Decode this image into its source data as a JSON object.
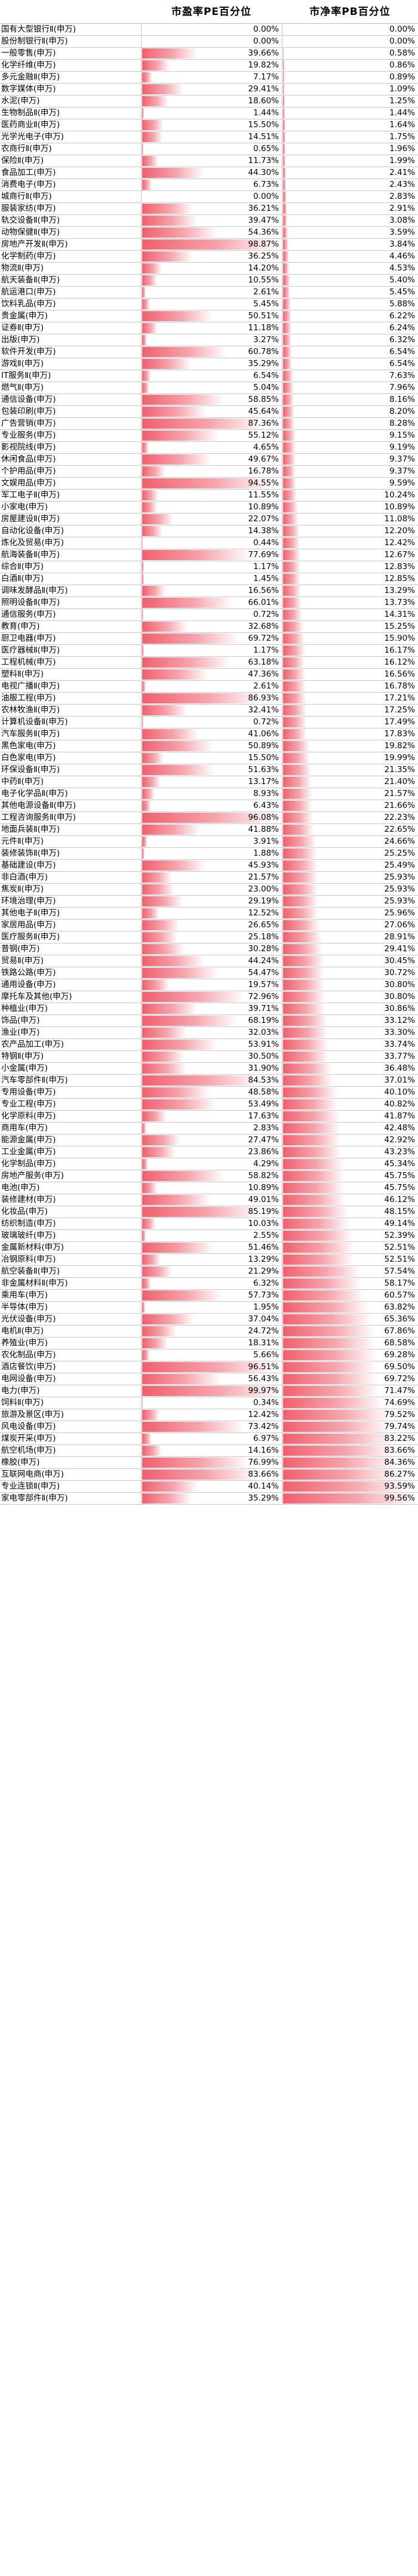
{
  "chart_data": {
    "type": "table",
    "title": "",
    "columns": [
      "",
      "市盈率PE百分位",
      "市净率PB百分位"
    ],
    "bar_color": "#f0606e",
    "rows": [
      [
        "国有大型银行Ⅱ(申万)",
        "0.00%",
        "0.00%"
      ],
      [
        "股份制银行Ⅱ(申万)",
        "0.00%",
        "0.00%"
      ],
      [
        "一般零售(申万)",
        "39.66%",
        "0.58%"
      ],
      [
        "化学纤维(申万)",
        "19.82%",
        "0.86%"
      ],
      [
        "多元金融Ⅱ(申万)",
        "7.17%",
        "0.89%"
      ],
      [
        "数字媒体(申万)",
        "29.41%",
        "1.09%"
      ],
      [
        "水泥(申万)",
        "18.60%",
        "1.25%"
      ],
      [
        "生物制品Ⅱ(申万)",
        "1.44%",
        "1.44%"
      ],
      [
        "医药商业Ⅱ(申万)",
        "15.50%",
        "1.64%"
      ],
      [
        "光学光电子(申万)",
        "14.51%",
        "1.75%"
      ],
      [
        "农商行Ⅱ(申万)",
        "0.65%",
        "1.96%"
      ],
      [
        "保险Ⅱ(申万)",
        "11.73%",
        "1.99%"
      ],
      [
        "食品加工(申万)",
        "44.30%",
        "2.41%"
      ],
      [
        "消费电子(申万)",
        "6.73%",
        "2.43%"
      ],
      [
        "城商行Ⅱ(申万)",
        "0.00%",
        "2.83%"
      ],
      [
        "服装家纺(申万)",
        "36.21%",
        "2.91%"
      ],
      [
        "轨交设备Ⅱ(申万)",
        "39.47%",
        "3.08%"
      ],
      [
        "动物保健Ⅱ(申万)",
        "54.36%",
        "3.59%"
      ],
      [
        "房地产开发Ⅱ(申万)",
        "98.87%",
        "3.84%"
      ],
      [
        "化学制药(申万)",
        "36.25%",
        "4.46%"
      ],
      [
        "物流Ⅱ(申万)",
        "14.20%",
        "4.53%"
      ],
      [
        "航天装备Ⅱ(申万)",
        "10.55%",
        "5.40%"
      ],
      [
        "航运港口(申万)",
        "2.61%",
        "5.45%"
      ],
      [
        "饮料乳品(申万)",
        "5.45%",
        "5.88%"
      ],
      [
        "贵金属(申万)",
        "50.51%",
        "6.22%"
      ],
      [
        "证券Ⅱ(申万)",
        "11.18%",
        "6.24%"
      ],
      [
        "出版(申万)",
        "3.27%",
        "6.32%"
      ],
      [
        "软件开发(申万)",
        "60.78%",
        "6.54%"
      ],
      [
        "游戏Ⅱ(申万)",
        "35.29%",
        "6.54%"
      ],
      [
        "IT服务Ⅱ(申万)",
        "6.54%",
        "7.63%"
      ],
      [
        "燃气Ⅱ(申万)",
        "5.04%",
        "7.96%"
      ],
      [
        "通信设备(申万)",
        "58.85%",
        "8.16%"
      ],
      [
        "包装印刷(申万)",
        "45.64%",
        "8.20%"
      ],
      [
        "广告营销(申万)",
        "87.36%",
        "8.28%"
      ],
      [
        "专业服务(申万)",
        "55.12%",
        "9.15%"
      ],
      [
        "影视院线(申万)",
        "4.65%",
        "9.19%"
      ],
      [
        "休闲食品(申万)",
        "49.67%",
        "9.37%"
      ],
      [
        "个护用品(申万)",
        "16.78%",
        "9.37%"
      ],
      [
        "文娱用品(申万)",
        "94.55%",
        "9.59%"
      ],
      [
        "军工电子Ⅱ(申万)",
        "11.55%",
        "10.24%"
      ],
      [
        "小家电(申万)",
        "10.89%",
        "10.89%"
      ],
      [
        "房屋建设Ⅱ(申万)",
        "22.07%",
        "11.08%"
      ],
      [
        "自动化设备(申万)",
        "14.38%",
        "12.20%"
      ],
      [
        "炼化及贸易(申万)",
        "0.44%",
        "12.42%"
      ],
      [
        "航海装备Ⅱ(申万)",
        "77.69%",
        "12.67%"
      ],
      [
        "综合Ⅱ(申万)",
        "1.17%",
        "12.83%"
      ],
      [
        "白酒Ⅱ(申万)",
        "1.45%",
        "12.85%"
      ],
      [
        "调味发酵品Ⅱ(申万)",
        "16.56%",
        "13.29%"
      ],
      [
        "照明设备Ⅱ(申万)",
        "66.01%",
        "13.73%"
      ],
      [
        "通信服务(申万)",
        "0.72%",
        "14.31%"
      ],
      [
        "教育(申万)",
        "32.68%",
        "15.25%"
      ],
      [
        "厨卫电器(申万)",
        "69.72%",
        "15.90%"
      ],
      [
        "医疗器械Ⅱ(申万)",
        "1.17%",
        "16.17%"
      ],
      [
        "工程机械(申万)",
        "63.18%",
        "16.12%"
      ],
      [
        "塑料Ⅱ(申万)",
        "47.36%",
        "16.56%"
      ],
      [
        "电视广播Ⅱ(申万)",
        "2.61%",
        "16.78%"
      ],
      [
        "油服工程(申万)",
        "86.93%",
        "17.21%"
      ],
      [
        "农林牧渔Ⅱ(申万)",
        "32.41%",
        "17.25%"
      ],
      [
        "计算机设备Ⅱ(申万)",
        "0.72%",
        "17.49%"
      ],
      [
        "汽车服务Ⅱ(申万)",
        "41.06%",
        "17.83%"
      ],
      [
        "黑色家电(申万)",
        "50.89%",
        "19.82%"
      ],
      [
        "白色家电(申万)",
        "15.50%",
        "19.99%"
      ],
      [
        "环保设备Ⅱ(申万)",
        "51.63%",
        "21.35%"
      ],
      [
        "中药Ⅱ(申万)",
        "13.17%",
        "21.40%"
      ],
      [
        "电子化学品Ⅱ(申万)",
        "8.93%",
        "21.57%"
      ],
      [
        "其他电源设备Ⅱ(申万)",
        "6.43%",
        "21.66%"
      ],
      [
        "工程咨询服务Ⅱ(申万)",
        "96.08%",
        "22.23%"
      ],
      [
        "地面兵装Ⅱ(申万)",
        "41.88%",
        "22.65%"
      ],
      [
        "元件Ⅱ(申万)",
        "3.91%",
        "24.66%"
      ],
      [
        "装修装饰Ⅱ(申万)",
        "1.88%",
        "25.25%"
      ],
      [
        "基础建设(申万)",
        "45.93%",
        "25.49%"
      ],
      [
        "非白酒(申万)",
        "21.57%",
        "25.93%"
      ],
      [
        "焦炭Ⅱ(申万)",
        "23.00%",
        "25.93%"
      ],
      [
        "环境治理(申万)",
        "29.19%",
        "25.93%"
      ],
      [
        "其他电子Ⅱ(申万)",
        "12.52%",
        "25.96%"
      ],
      [
        "家居用品(申万)",
        "26.65%",
        "27.06%"
      ],
      [
        "医疗服务Ⅱ(申万)",
        "25.18%",
        "28.91%"
      ],
      [
        "普钢(申万)",
        "30.28%",
        "29.41%"
      ],
      [
        "贸易Ⅱ(申万)",
        "44.24%",
        "30.45%"
      ],
      [
        "铁路公路(申万)",
        "54.47%",
        "30.72%"
      ],
      [
        "通用设备(申万)",
        "19.57%",
        "30.80%"
      ],
      [
        "摩托车及其他(申万)",
        "72.96%",
        "30.80%"
      ],
      [
        "种植业(申万)",
        "39.71%",
        "30.86%"
      ],
      [
        "饰品(申万)",
        "68.19%",
        "33.12%"
      ],
      [
        "渔业(申万)",
        "32.03%",
        "33.30%"
      ],
      [
        "农产品加工(申万)",
        "53.91%",
        "33.74%"
      ],
      [
        "特钢Ⅱ(申万)",
        "30.50%",
        "33.77%"
      ],
      [
        "小金属(申万)",
        "31.90%",
        "36.48%"
      ],
      [
        "汽车零部件Ⅱ(申万)",
        "84.53%",
        "37.01%"
      ],
      [
        "专用设备(申万)",
        "48.58%",
        "40.10%"
      ],
      [
        "专业工程(申万)",
        "53.49%",
        "40.82%"
      ],
      [
        "化学原料(申万)",
        "17.63%",
        "41.87%"
      ],
      [
        "商用车(申万)",
        "2.83%",
        "42.48%"
      ],
      [
        "能源金属(申万)",
        "27.47%",
        "42.92%"
      ],
      [
        "工业金属(申万)",
        "23.86%",
        "43.23%"
      ],
      [
        "化学制品(申万)",
        "4.29%",
        "45.34%"
      ],
      [
        "房地产服务(申万)",
        "58.82%",
        "45.75%"
      ],
      [
        "电池(申万)",
        "10.89%",
        "45.75%"
      ],
      [
        "装修建材(申万)",
        "49.01%",
        "46.12%"
      ],
      [
        "化妆品(申万)",
        "85.19%",
        "48.15%"
      ],
      [
        "纺织制造(申万)",
        "10.03%",
        "49.14%"
      ],
      [
        "玻璃玻纤(申万)",
        "2.55%",
        "52.39%"
      ],
      [
        "金属新材料(申万)",
        "51.46%",
        "52.51%"
      ],
      [
        "冶钢原料(申万)",
        "13.29%",
        "52.51%"
      ],
      [
        "航空装备Ⅱ(申万)",
        "21.29%",
        "57.54%"
      ],
      [
        "非金属材料Ⅱ(申万)",
        "6.32%",
        "58.17%"
      ],
      [
        "乘用车(申万)",
        "57.73%",
        "60.57%"
      ],
      [
        "半导体(申万)",
        "1.95%",
        "63.82%"
      ],
      [
        "光伏设备(申万)",
        "37.04%",
        "65.36%"
      ],
      [
        "电机Ⅱ(申万)",
        "24.72%",
        "67.86%"
      ],
      [
        "养殖业(申万)",
        "18.31%",
        "68.58%"
      ],
      [
        "农化制品(申万)",
        "5.66%",
        "69.28%"
      ],
      [
        "酒店餐饮(申万)",
        "96.51%",
        "69.50%"
      ],
      [
        "电网设备(申万)",
        "56.43%",
        "69.72%"
      ],
      [
        "电力(申万)",
        "99.97%",
        "71.47%"
      ],
      [
        "饲料Ⅱ(申万)",
        "0.34%",
        "74.69%"
      ],
      [
        "旅游及景区(申万)",
        "12.42%",
        "79.52%"
      ],
      [
        "风电设备(申万)",
        "73.42%",
        "79.74%"
      ],
      [
        "煤炭开采(申万)",
        "6.97%",
        "83.22%"
      ],
      [
        "航空机场(申万)",
        "14.16%",
        "83.66%"
      ],
      [
        "橡胶(申万)",
        "76.99%",
        "84.36%"
      ],
      [
        "互联网电商(申万)",
        "83.66%",
        "86.27%"
      ],
      [
        "专业连锁Ⅱ(申万)",
        "40.14%",
        "93.59%"
      ],
      [
        "家电零部件Ⅱ(申万)",
        "35.29%",
        "99.56%"
      ]
    ]
  }
}
